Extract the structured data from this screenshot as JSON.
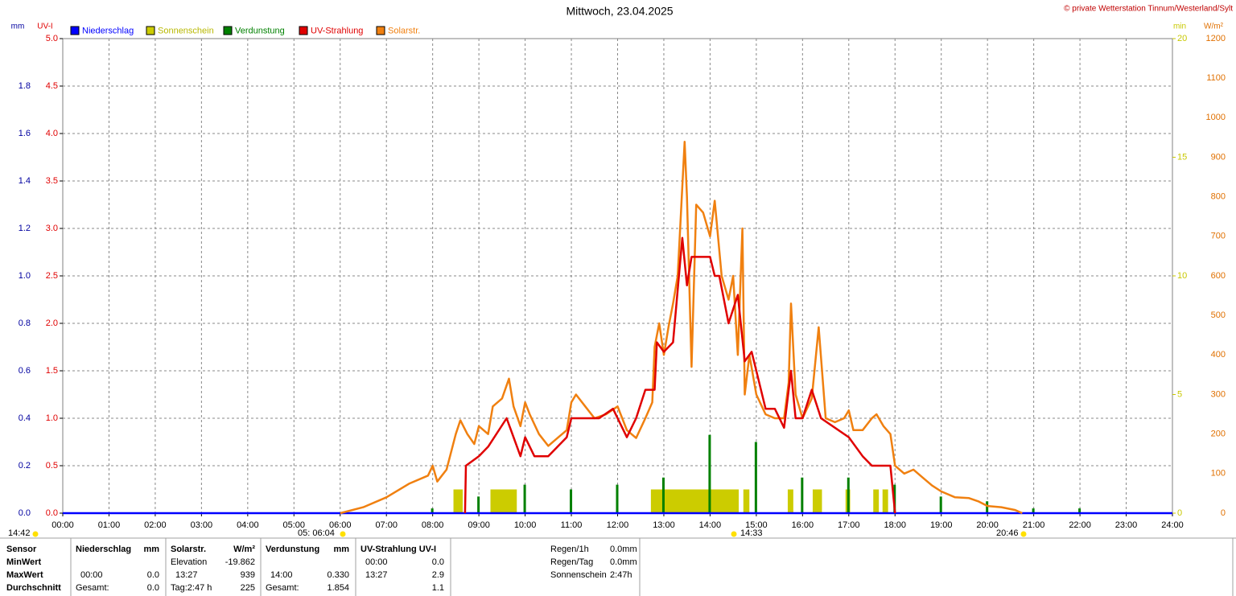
{
  "chart_data": {
    "type": "line",
    "title": "Mittwoch, 23.04.2025",
    "subtitle": "© private Wetterstation Tinnum/Westerland/Sylt",
    "xlim": [
      0,
      24
    ],
    "xticks": [
      {
        "value": 0,
        "label": "00:00"
      },
      {
        "value": 1,
        "label": "01:00"
      },
      {
        "value": 2,
        "label": "02:00"
      },
      {
        "value": 3,
        "label": "03:00"
      },
      {
        "value": 4,
        "label": "04:00"
      },
      {
        "value": 5,
        "label": "05:00"
      },
      {
        "value": 6,
        "label": "06:00"
      },
      {
        "value": 7,
        "label": "07:00"
      },
      {
        "value": 8,
        "label": "08:00"
      },
      {
        "value": 9,
        "label": "09:00"
      },
      {
        "value": 10,
        "label": "10:00"
      },
      {
        "value": 11,
        "label": "11:00"
      },
      {
        "value": 12,
        "label": "12:00"
      },
      {
        "value": 13,
        "label": "13:00"
      },
      {
        "value": 14,
        "label": "14:00"
      },
      {
        "value": 15,
        "label": "15:00"
      },
      {
        "value": 16,
        "label": "16:00"
      },
      {
        "value": 17,
        "label": "17:00"
      },
      {
        "value": 18,
        "label": "18:00"
      },
      {
        "value": 19,
        "label": "19:00"
      },
      {
        "value": 20,
        "label": "20:00"
      },
      {
        "value": 21,
        "label": "21:00"
      },
      {
        "value": 22,
        "label": "22:00"
      },
      {
        "value": 23,
        "label": "23:00"
      },
      {
        "value": 24,
        "label": "24:00"
      }
    ],
    "grid": true,
    "axes": [
      {
        "id": "mm",
        "label": "mm",
        "color": "#0000a0",
        "lim": [
          0,
          2
        ],
        "ticks": [
          {
            "value": 0,
            "label": "0.0"
          },
          0.2,
          0.4,
          0.6,
          0.8,
          {
            "value": 1,
            "label": "1.0"
          },
          1.2,
          1.4,
          1.6,
          1.8
        ]
      },
      {
        "id": "uv",
        "label": "UV-I",
        "color": "#e00000",
        "lim": [
          0,
          5
        ],
        "ticks": [
          {
            "value": 0,
            "label": "0.0"
          },
          0.5,
          {
            "value": 1,
            "label": "1.0"
          },
          1.5,
          {
            "value": 2,
            "label": "2.0"
          },
          2.5,
          {
            "value": 3,
            "label": "3.0"
          },
          3.5,
          {
            "value": 4,
            "label": "4.0"
          },
          4.5,
          {
            "value": 5,
            "label": "5.0"
          }
        ]
      },
      {
        "id": "min",
        "label": "min",
        "color": "#c8c800",
        "lim": [
          0,
          20
        ],
        "ticks": [
          0,
          5,
          10,
          15,
          20
        ]
      },
      {
        "id": "wm2",
        "label": "W/m²",
        "color": "#e07000",
        "lim": [
          0,
          1200
        ],
        "ticks": [
          0,
          100,
          200,
          300,
          400,
          500,
          600,
          700,
          800,
          900,
          1000,
          1100,
          1200
        ]
      }
    ],
    "series": [
      {
        "name": "Niederschlag",
        "color": "#0000ff",
        "kind": "line",
        "axis": "mm",
        "x": [
          0,
          24
        ],
        "values": [
          0,
          0
        ]
      },
      {
        "name": "Sonnenschein",
        "color": "#cccc00",
        "kind": "span",
        "axis": "min",
        "x": [
          8.45,
          9.25,
          12.72,
          14.72,
          15.68,
          16.22,
          16.93,
          17.53,
          17.73
        ],
        "x_end": [
          8.65,
          9.82,
          14.62,
          14.85,
          15.8,
          16.42,
          17.03,
          17.65,
          17.85
        ],
        "values": [
          1,
          1,
          1,
          1,
          1,
          1,
          1,
          1,
          1
        ]
      },
      {
        "name": "Verdunstung",
        "color": "#008000",
        "kind": "bar",
        "axis": "mm",
        "x": [
          8,
          9,
          10,
          11,
          12,
          13,
          14,
          15,
          16,
          17,
          18,
          19,
          20,
          21,
          22
        ],
        "values": [
          0.02,
          0.07,
          0.12,
          0.1,
          0.12,
          0.15,
          0.33,
          0.3,
          0.15,
          0.15,
          0.12,
          0.07,
          0.05,
          0.02,
          0.02
        ]
      },
      {
        "name": "UV-Strahlung",
        "color": "#e00000",
        "kind": "line",
        "axis": "uv",
        "x": [
          8.7,
          8.72,
          9.0,
          9.2,
          9.6,
          9.9,
          10.0,
          10.2,
          10.5,
          10.9,
          11.0,
          11.6,
          11.9,
          12.2,
          12.4,
          12.6,
          12.8,
          12.85,
          13.0,
          13.2,
          13.4,
          13.5,
          13.6,
          14.0,
          14.1,
          14.2,
          14.4,
          14.6,
          14.75,
          14.9,
          15.0,
          15.2,
          15.4,
          15.6,
          15.75,
          15.85,
          16.0,
          16.2,
          16.4,
          16.7,
          17.0,
          17.3,
          17.5,
          17.7,
          17.9,
          18.0
        ],
        "values": [
          0,
          0.5,
          0.6,
          0.7,
          1.0,
          0.6,
          0.8,
          0.6,
          0.6,
          0.8,
          1.0,
          1.0,
          1.1,
          0.8,
          1.0,
          1.3,
          1.3,
          1.8,
          1.7,
          1.8,
          2.9,
          2.4,
          2.7,
          2.7,
          2.5,
          2.5,
          2.0,
          2.3,
          1.6,
          1.7,
          1.5,
          1.1,
          1.1,
          0.9,
          1.5,
          1.0,
          1.0,
          1.3,
          1.0,
          0.9,
          0.8,
          0.6,
          0.5,
          0.5,
          0.5,
          0.0
        ]
      },
      {
        "name": "Solarstr.",
        "color": "#f08010",
        "kind": "line",
        "axis": "wm2",
        "x": [
          6.0,
          6.5,
          7.0,
          7.5,
          7.9,
          8.0,
          8.1,
          8.3,
          8.5,
          8.6,
          8.75,
          8.9,
          9.0,
          9.2,
          9.3,
          9.5,
          9.65,
          9.75,
          9.9,
          10.0,
          10.1,
          10.3,
          10.5,
          10.7,
          10.9,
          11.0,
          11.1,
          11.3,
          11.5,
          11.75,
          12.0,
          12.2,
          12.4,
          12.6,
          12.75,
          12.8,
          12.9,
          13.0,
          13.1,
          13.2,
          13.3,
          13.45,
          13.5,
          13.6,
          13.7,
          13.85,
          14.0,
          14.1,
          14.25,
          14.4,
          14.5,
          14.6,
          14.7,
          14.75,
          14.85,
          15.0,
          15.2,
          15.4,
          15.6,
          15.7,
          15.75,
          15.85,
          16.0,
          16.2,
          16.35,
          16.5,
          16.7,
          16.9,
          17.0,
          17.1,
          17.3,
          17.5,
          17.6,
          17.75,
          17.9,
          18.0,
          18.2,
          18.4,
          18.6,
          18.8,
          19.0,
          19.3,
          19.6,
          19.8,
          20.0,
          20.3,
          20.6,
          20.75
        ],
        "values": [
          0,
          15,
          40,
          75,
          95,
          120,
          80,
          110,
          200,
          235,
          200,
          175,
          220,
          200,
          270,
          290,
          340,
          270,
          220,
          280,
          250,
          200,
          170,
          190,
          210,
          280,
          300,
          270,
          240,
          250,
          270,
          210,
          190,
          240,
          280,
          420,
          480,
          400,
          470,
          530,
          600,
          939,
          800,
          370,
          780,
          760,
          700,
          790,
          600,
          540,
          600,
          400,
          720,
          300,
          400,
          300,
          250,
          240,
          240,
          330,
          530,
          300,
          240,
          290,
          470,
          240,
          230,
          240,
          260,
          210,
          210,
          240,
          250,
          220,
          200,
          120,
          100,
          110,
          90,
          70,
          55,
          40,
          38,
          30,
          18,
          15,
          8,
          0
        ]
      }
    ],
    "annotations": [
      "14:42",
      "05: 06:04",
      "14:33",
      "20:46"
    ]
  },
  "stats": {
    "row_labels": [
      "Sensor",
      "MinWert",
      "MaxWert",
      "Durchschnitt"
    ],
    "niederschlag": {
      "header": "Niederschlag",
      "unit": "mm",
      "max_time": "00:00",
      "max": "0.0",
      "avg_label": "Gesamt:",
      "avg": "0.0"
    },
    "solar": {
      "header": "Solarstr.",
      "unit": "W/m²",
      "min_label": "Elevation",
      "min": "-19.862",
      "max_time": "13:27",
      "max": "939",
      "avg_label": "Tag:2:47 h",
      "avg": "225"
    },
    "verdunstung": {
      "header": "Verdunstung",
      "unit": "mm",
      "max_time": "14:00",
      "max": "0.330",
      "avg_label": "Gesamt:",
      "avg": "1.854"
    },
    "uv": {
      "header": "UV-Strahlung UV-I",
      "min_time": "00:00",
      "min": "0.0",
      "max_time": "13:27",
      "max": "2.9",
      "avg": "1.1"
    },
    "summary": {
      "labels": [
        "Regen/1h",
        "Regen/Tag",
        "Sonnenschein"
      ],
      "values": [
        "0.0mm",
        "0.0mm",
        "2:47h"
      ]
    }
  }
}
